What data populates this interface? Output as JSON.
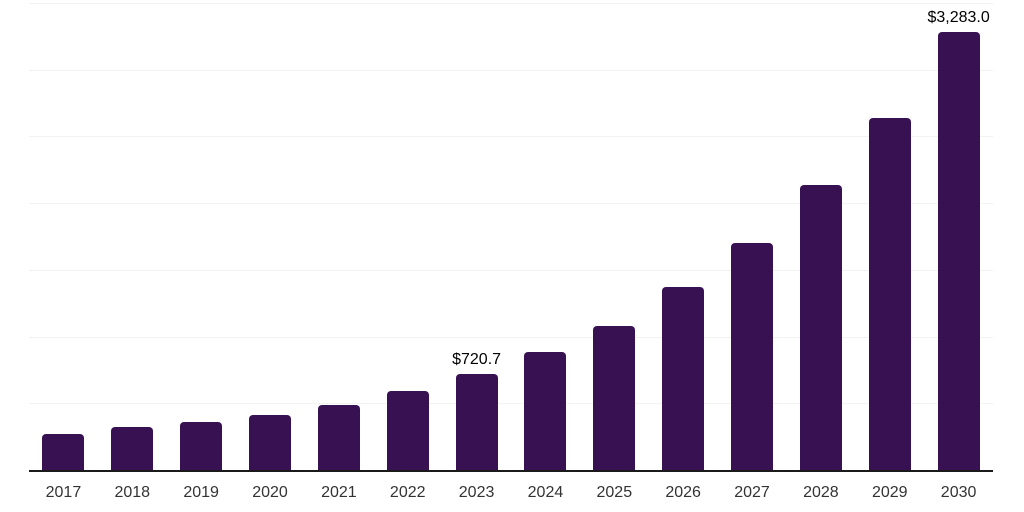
{
  "chart_data": {
    "type": "bar",
    "title": "",
    "xlabel": "",
    "ylabel": "",
    "categories": [
      "2017",
      "2018",
      "2019",
      "2020",
      "2021",
      "2022",
      "2023",
      "2024",
      "2025",
      "2026",
      "2027",
      "2028",
      "2029",
      "2030"
    ],
    "values": [
      271,
      325,
      360,
      410,
      487,
      592,
      720.7,
      887,
      1080,
      1369,
      1704,
      2136,
      2636,
      3283.0
    ],
    "data_labels": [
      "",
      "",
      "",
      "",
      "",
      "",
      "$720.7",
      "",
      "",
      "",
      "",
      "",
      "",
      "$3,283.0"
    ],
    "ylim": [
      0,
      3500
    ],
    "gridline_step": 500,
    "grid": "horizontal",
    "legend": "none",
    "y_axis_tick_labels": "hidden"
  },
  "style": {
    "bar_color": "#371151",
    "axis_color": "#1a1a1a",
    "gridline_color": "#f2f2f2",
    "x_label_color": "#333333",
    "data_label_color": "#000000",
    "background_color": "#ffffff"
  }
}
